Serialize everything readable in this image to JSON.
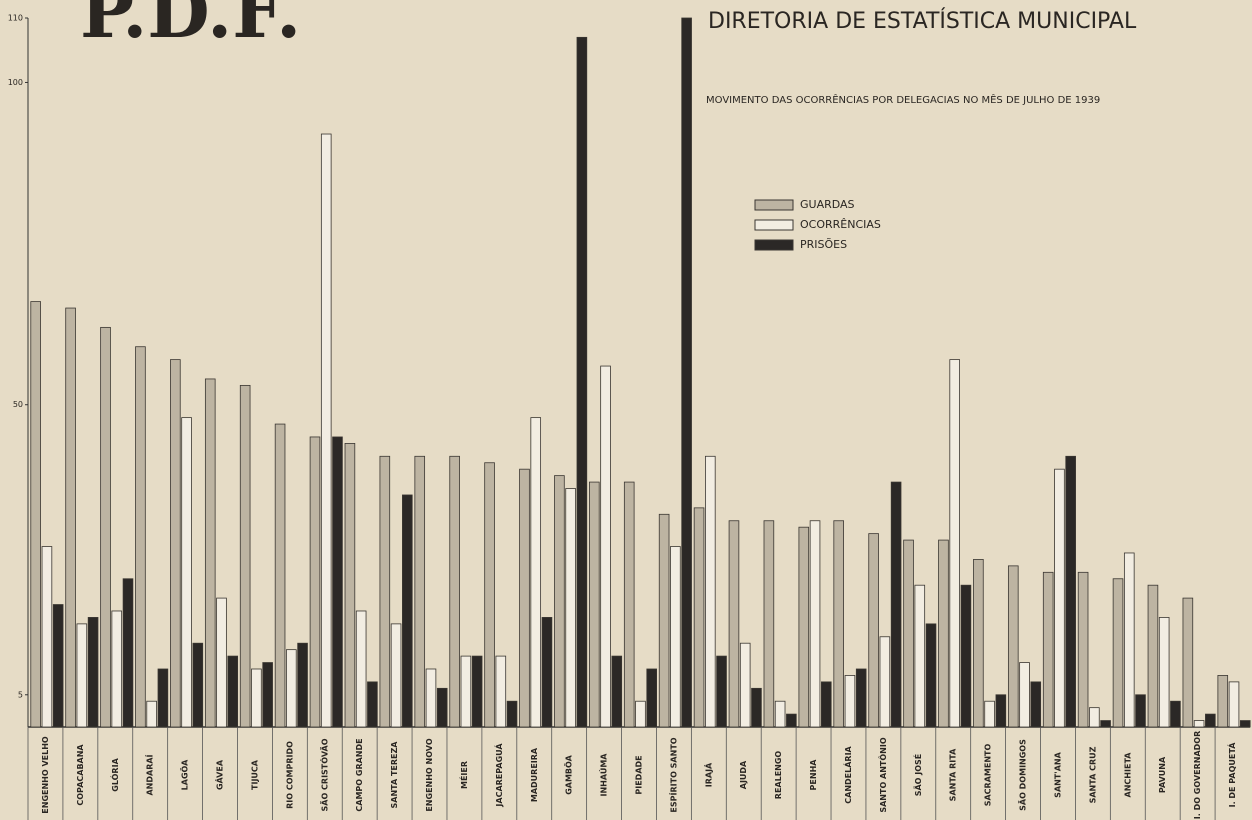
{
  "chart_data": {
    "type": "bar",
    "emblem": "P.D.F.",
    "title": "DIRETORIA DE ESTATÍSTICA MUNICIPAL",
    "subtitle": "MOVIMENTO DAS OCORRÊNCIAS POR DELEGACIAS NO MÊS DE JULHO DE 1939",
    "categories": [
      "ENGENHO VELHO",
      "COPACABANA",
      "GLÓRIA",
      "ANDARAÍ",
      "LAGÔA",
      "GÁVEA",
      "TIJUCA",
      "RIO COMPRIDO",
      "SÃO CRISTÓVÃO",
      "CAMPO GRANDE",
      "SANTA TEREZA",
      "ENGENHO NOVO",
      "MÉIER",
      "JACAREPAGUÁ",
      "MADUREIRA",
      "GAMBÔA",
      "INHAÚMA",
      "PIEDADE",
      "ESPÍRITO SANTO",
      "IRAJÁ",
      "AJUDA",
      "REALENGO",
      "PENHA",
      "CANDELÁRIA",
      "SANTO ANTÔNIO",
      "SÃO JOSÉ",
      "SANTA RITA",
      "SACRAMENTO",
      "SÃO DOMINGOS",
      "SANT'ANA",
      "SANTA CRUZ",
      "ANCHIETA",
      "PAVUNA",
      "I. DO GOVERNADOR",
      "I. DE PAQUETÁ"
    ],
    "series": [
      {
        "name": "GUARDAS",
        "color": "#bdb4a2",
        "values": [
          66,
          65,
          62,
          59,
          57,
          54,
          53,
          47,
          45,
          44,
          42,
          42,
          42,
          41,
          40,
          39,
          38,
          38,
          33,
          34,
          32,
          32,
          31,
          32,
          30,
          29,
          29,
          26,
          25,
          24,
          24,
          23,
          22,
          20,
          8
        ]
      },
      {
        "name": "OCORRÊNCIAS",
        "color": "#f2ede2",
        "values": [
          28,
          16,
          18,
          4,
          48,
          20,
          9,
          12,
          92,
          18,
          16,
          9,
          11,
          11,
          48,
          37,
          56,
          4,
          28,
          42,
          13,
          4,
          32,
          8,
          14,
          22,
          57,
          4,
          10,
          40,
          3,
          27,
          17,
          1,
          7
        ]
      },
      {
        "name": "PRISÕES",
        "color": "#2b2826",
        "values": [
          19,
          17,
          23,
          9,
          13,
          11,
          10,
          13,
          45,
          7,
          36,
          6,
          11,
          4,
          17,
          107,
          11,
          9,
          110,
          11,
          6,
          2,
          7,
          9,
          38,
          16,
          22,
          5,
          7,
          42,
          1,
          5,
          4,
          2,
          1
        ]
      }
    ],
    "ylim": [
      0,
      110
    ],
    "yticks": [
      5,
      50,
      100,
      110
    ],
    "legend": "upper right"
  }
}
